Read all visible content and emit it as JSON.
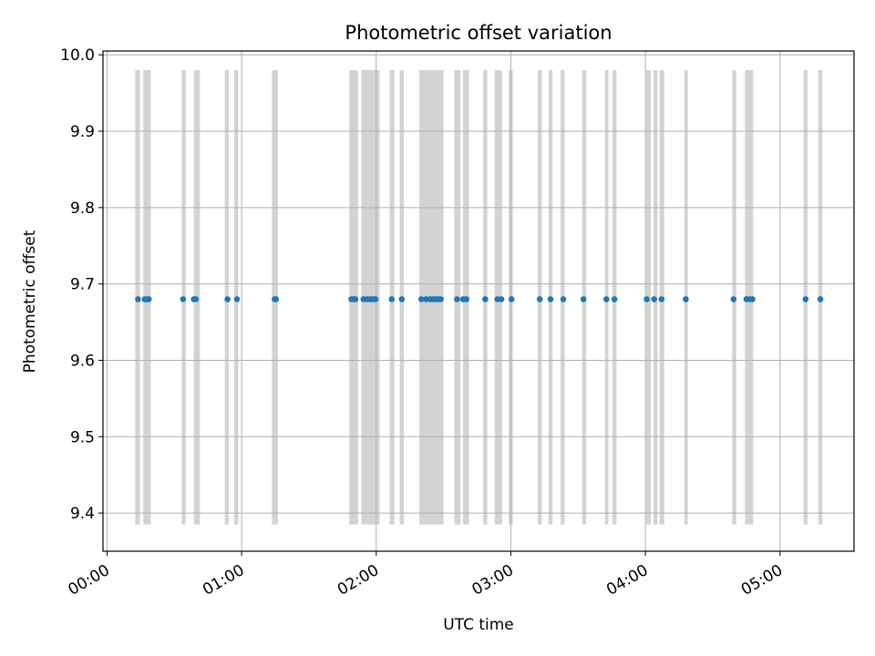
{
  "chart_data": {
    "type": "scatter",
    "title": "Photometric offset variation",
    "xlabel": "UTC time",
    "ylabel": "Photometric offset",
    "x_unit": "hours",
    "xlim": [
      -0.03,
      5.55
    ],
    "ylim": [
      9.35,
      10.005
    ],
    "x_ticks": [
      {
        "value": 0,
        "label": "00:00"
      },
      {
        "value": 1,
        "label": "01:00"
      },
      {
        "value": 2,
        "label": "02:00"
      },
      {
        "value": 3,
        "label": "03:00"
      },
      {
        "value": 4,
        "label": "04:00"
      },
      {
        "value": 5,
        "label": "05:00"
      }
    ],
    "y_ticks": [
      {
        "value": 9.4,
        "label": "9.4"
      },
      {
        "value": 9.5,
        "label": "9.5"
      },
      {
        "value": 9.6,
        "label": "9.6"
      },
      {
        "value": 9.7,
        "label": "9.7"
      },
      {
        "value": 9.8,
        "label": "9.8"
      },
      {
        "value": 9.9,
        "label": "9.9"
      },
      {
        "value": 10.0,
        "label": "10.0"
      }
    ],
    "grid": true,
    "band_color": "#d3d3d3",
    "point_color": "#1f77b4",
    "band_range": [
      9.385,
      9.98
    ],
    "bands": [
      [
        0.21,
        0.245
      ],
      [
        0.27,
        0.325
      ],
      [
        0.555,
        0.585
      ],
      [
        0.645,
        0.69
      ],
      [
        0.875,
        0.905
      ],
      [
        0.945,
        0.975
      ],
      [
        1.225,
        1.27
      ],
      [
        1.8,
        1.865
      ],
      [
        1.89,
        2.025
      ],
      [
        2.1,
        2.135
      ],
      [
        2.175,
        2.205
      ],
      [
        2.32,
        2.5
      ],
      [
        2.58,
        2.625
      ],
      [
        2.645,
        2.69
      ],
      [
        2.795,
        2.825
      ],
      [
        2.88,
        2.935
      ],
      [
        2.985,
        3.015
      ],
      [
        3.2,
        3.23
      ],
      [
        3.28,
        3.31
      ],
      [
        3.37,
        3.4
      ],
      [
        3.53,
        3.56
      ],
      [
        3.7,
        3.725
      ],
      [
        3.755,
        3.785
      ],
      [
        4.005,
        4.04
      ],
      [
        4.06,
        4.09
      ],
      [
        4.105,
        4.14
      ],
      [
        4.29,
        4.315
      ],
      [
        4.645,
        4.675
      ],
      [
        4.74,
        4.8
      ],
      [
        5.175,
        5.205
      ],
      [
        5.285,
        5.315
      ]
    ],
    "series": [
      {
        "name": "offset",
        "x": [
          0.23,
          0.28,
          0.3,
          0.31,
          0.565,
          0.645,
          0.66,
          0.895,
          0.965,
          1.245,
          1.255,
          1.815,
          1.83,
          1.845,
          1.905,
          1.93,
          1.955,
          1.975,
          1.995,
          2.115,
          2.19,
          2.335,
          2.37,
          2.4,
          2.42,
          2.44,
          2.46,
          2.48,
          2.6,
          2.645,
          2.67,
          2.81,
          2.9,
          2.93,
          3.005,
          3.215,
          3.295,
          3.39,
          3.54,
          3.71,
          3.77,
          4.01,
          4.065,
          4.12,
          4.3,
          4.655,
          4.75,
          4.775,
          4.795,
          5.19,
          5.3
        ],
        "y": [
          9.68,
          9.68,
          9.68,
          9.68,
          9.68,
          9.68,
          9.68,
          9.68,
          9.68,
          9.68,
          9.68,
          9.68,
          9.68,
          9.68,
          9.68,
          9.68,
          9.68,
          9.68,
          9.68,
          9.68,
          9.68,
          9.68,
          9.68,
          9.68,
          9.68,
          9.68,
          9.68,
          9.68,
          9.68,
          9.68,
          9.68,
          9.68,
          9.68,
          9.68,
          9.68,
          9.68,
          9.68,
          9.68,
          9.68,
          9.68,
          9.68,
          9.68,
          9.68,
          9.68,
          9.68,
          9.68,
          9.68,
          9.68,
          9.68,
          9.68,
          9.68
        ]
      }
    ]
  }
}
